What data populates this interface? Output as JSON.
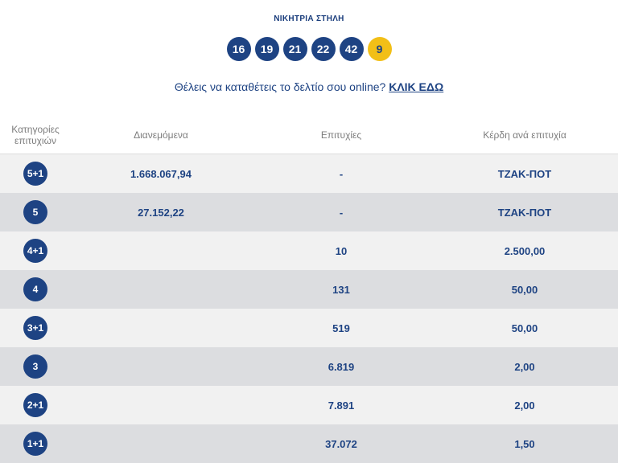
{
  "header": {
    "title": "ΝΙΚΗΤΡΙΑ ΣΤΗΛΗ",
    "numbers": [
      "16",
      "19",
      "21",
      "22",
      "42"
    ],
    "bonus": "9"
  },
  "promo": {
    "text": "Θέλεις να καταθέτεις το δελτίο σου online? ",
    "link": "ΚΛΙΚ ΕΔΩ"
  },
  "table": {
    "headers": {
      "category_line1": "Κατηγορίες",
      "category_line2": "επιτυχιών",
      "distributed": "Διανεμόμενα",
      "winners": "Επιτυχίες",
      "prize": "Κέρδη ανά επιτυχία"
    },
    "rows": [
      {
        "category": "5+1",
        "distributed": "1.668.067,94",
        "winners": "-",
        "prize": "ΤΖΑΚ-ΠΟΤ"
      },
      {
        "category": "5",
        "distributed": "27.152,22",
        "winners": "-",
        "prize": "ΤΖΑΚ-ΠΟΤ"
      },
      {
        "category": "4+1",
        "distributed": "",
        "winners": "10",
        "prize": "2.500,00"
      },
      {
        "category": "4",
        "distributed": "",
        "winners": "131",
        "prize": "50,00"
      },
      {
        "category": "3+1",
        "distributed": "",
        "winners": "519",
        "prize": "50,00"
      },
      {
        "category": "3",
        "distributed": "",
        "winners": "6.819",
        "prize": "2,00"
      },
      {
        "category": "2+1",
        "distributed": "",
        "winners": "7.891",
        "prize": "2,00"
      },
      {
        "category": "1+1",
        "distributed": "",
        "winners": "37.072",
        "prize": "1,50"
      }
    ]
  }
}
